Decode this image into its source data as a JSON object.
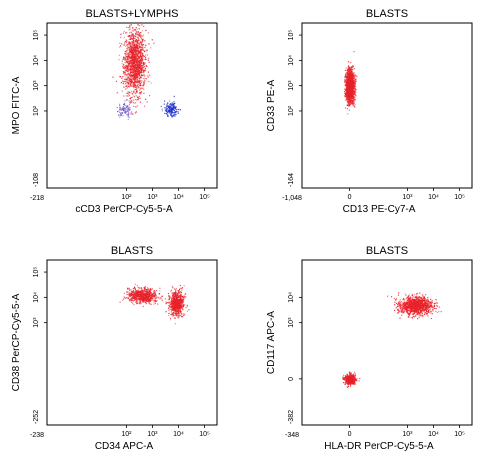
{
  "chart_data": [
    {
      "type": "scatter",
      "title": "BLASTS+LYMPHS",
      "xlabel": "cCD3 PerCP-Cy5-5-A",
      "ylabel": "MPO FITC-A",
      "x_scale": "logicle",
      "y_scale": "logicle",
      "x_min_label": "-218",
      "y_min_label": "-108",
      "x_ticks": [
        "10²",
        "10³",
        "10⁴",
        "10⁵"
      ],
      "y_ticks": [
        "10²",
        "10³",
        "10⁴",
        "10⁵"
      ],
      "series": [
        {
          "color": "#e8222a",
          "center": [
            200,
            8000
          ],
          "spread": [
            2.6,
            8.0
          ],
          "count": 1400
        },
        {
          "color": "#6a5acd",
          "center": [
            90,
            120
          ],
          "spread": [
            1.8,
            1.8
          ],
          "count": 90
        },
        {
          "color": "#2233cc",
          "center": [
            5000,
            120
          ],
          "spread": [
            1.6,
            1.7
          ],
          "count": 180
        }
      ]
    },
    {
      "type": "scatter",
      "title": "BLASTS",
      "xlabel": "CD13 PE-Cy7-A",
      "ylabel": "CD33 PE-A",
      "x_scale": "logicle",
      "y_scale": "logicle",
      "x_min_label": "-1,048",
      "y_min_label": "-164",
      "x_ticks": [
        "0",
        "10³",
        "10⁴",
        "10⁵"
      ],
      "y_ticks": [
        "10²",
        "10³",
        "10⁴",
        "10⁵"
      ],
      "series": [
        {
          "color": "#e8222a",
          "center": [
            0,
            1000
          ],
          "spread": [
            1.0,
            4.0
          ],
          "count": 1500
        }
      ]
    },
    {
      "type": "scatter",
      "title": "BLASTS",
      "xlabel": "CD34 APC-A",
      "ylabel": "CD38 PerCP-Cy5-5-A",
      "x_scale": "logicle",
      "y_scale": "logicle",
      "x_min_label": "-238",
      "y_min_label": "-252",
      "x_ticks": [
        "10²",
        "10³",
        "10⁴",
        "10⁵"
      ],
      "y_ticks": [
        "10³",
        "10⁴",
        "10⁵"
      ],
      "series": [
        {
          "color": "#e8222a",
          "center": [
            8000,
            6000
          ],
          "spread": [
            1.8,
            3.0
          ],
          "count": 700
        },
        {
          "color": "#e8222a",
          "center": [
            400,
            12000
          ],
          "spread": [
            3.5,
            1.8
          ],
          "count": 700
        }
      ]
    },
    {
      "type": "scatter",
      "title": "BLASTS",
      "xlabel": "HLA-DR PerCP-Cy5-5-A",
      "ylabel": "CD117 APC-A",
      "x_scale": "logicle",
      "y_scale": "logicle",
      "x_min_label": "-348",
      "y_min_label": "-382",
      "x_ticks": [
        "0",
        "10³",
        "10⁴",
        "10⁵"
      ],
      "y_ticks": [
        "0",
        "10³",
        "10⁴"
      ],
      "series": [
        {
          "color": "#e8222a",
          "center": [
            2000,
            5000
          ],
          "spread": [
            4.0,
            2.2
          ],
          "count": 1100
        },
        {
          "color": "#e8222a",
          "center": [
            0,
            0
          ],
          "spread": [
            1.3,
            1.3
          ],
          "count": 450
        }
      ]
    }
  ]
}
